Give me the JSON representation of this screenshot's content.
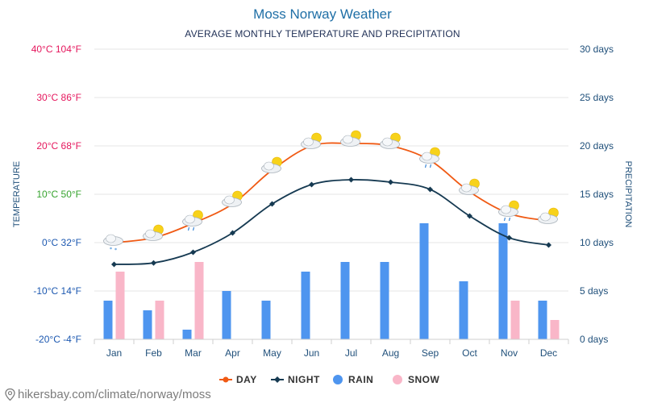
{
  "colors": {
    "title": "#1f6fa6",
    "day": "#f05a14",
    "night": "#163a52",
    "rain": "#4e95ef",
    "snow": "#f9b6c8",
    "grid": "#e6e6e6",
    "axis_label": "#1f4f7a"
  },
  "chart_data": {
    "type": "line+bar",
    "title": "Moss Norway Weather",
    "subtitle": "AVERAGE MONTHLY TEMPERATURE AND PRECIPITATION",
    "categories": [
      "Jan",
      "Feb",
      "Mar",
      "Apr",
      "May",
      "Jun",
      "Jul",
      "Aug",
      "Sep",
      "Oct",
      "Nov",
      "Dec"
    ],
    "y_left": {
      "label": "TEMPERATURE",
      "unit": "°C",
      "range": [
        -20,
        40
      ],
      "ticks": [
        {
          "value": 40,
          "label": "40°C 104°F",
          "color": "#e5175d"
        },
        {
          "value": 30,
          "label": "30°C 86°F",
          "color": "#e5175d"
        },
        {
          "value": 20,
          "label": "20°C 68°F",
          "color": "#e5175d"
        },
        {
          "value": 10,
          "label": "10°C 50°F",
          "color": "#36a32e"
        },
        {
          "value": 0,
          "label": "0°C 32°F",
          "color": "#1c58b0"
        },
        {
          "value": -10,
          "label": "-10°C 14°F",
          "color": "#1c58b0"
        },
        {
          "value": -20,
          "label": "-20°C -4°F",
          "color": "#1c58b0"
        }
      ]
    },
    "y_right": {
      "label": "PRECIPITATION",
      "unit": "days",
      "range": [
        0,
        30
      ],
      "ticks": [
        {
          "value": 30,
          "label": "30 days"
        },
        {
          "value": 25,
          "label": "25 days"
        },
        {
          "value": 20,
          "label": "20 days"
        },
        {
          "value": 15,
          "label": "15 days"
        },
        {
          "value": 10,
          "label": "10 days"
        },
        {
          "value": 5,
          "label": "5 days"
        },
        {
          "value": 0,
          "label": "0 days"
        }
      ]
    },
    "series": [
      {
        "name": "DAY",
        "kind": "line",
        "axis": "left",
        "values": [
          0,
          1,
          4,
          8,
          15,
          20,
          20.5,
          20,
          17,
          10.5,
          6,
          4.5
        ]
      },
      {
        "name": "NIGHT",
        "kind": "line",
        "axis": "left",
        "values": [
          -4.5,
          -4.2,
          -2,
          2,
          8,
          12,
          13,
          12.5,
          11,
          5.5,
          1,
          -0.5
        ]
      },
      {
        "name": "RAIN",
        "kind": "bar",
        "axis": "right",
        "values": [
          4,
          3,
          1,
          5,
          4,
          7,
          8,
          8,
          12,
          6,
          12,
          4
        ]
      },
      {
        "name": "SNOW",
        "kind": "bar",
        "axis": "right",
        "values": [
          7,
          4,
          8,
          0,
          0,
          0,
          0,
          0,
          0,
          0,
          4,
          2
        ]
      }
    ],
    "weather_icons": [
      "cloud-snow",
      "cloud-sun",
      "cloud-sun-rain",
      "cloud-sun",
      "cloud-sun",
      "cloud-sun",
      "cloud-sun",
      "cloud-sun",
      "cloud-sun-rain",
      "cloud-sun",
      "cloud-sun-rain",
      "cloud-sun"
    ],
    "legend": {
      "position": "bottom-center",
      "items": [
        {
          "label": "DAY",
          "marker": "line-dot"
        },
        {
          "label": "NIGHT",
          "marker": "line-diamond"
        },
        {
          "label": "RAIN",
          "marker": "circle"
        },
        {
          "label": "SNOW",
          "marker": "circle"
        }
      ]
    }
  },
  "footer": {
    "watermark": "hikersbay.com/climate/norway/moss"
  }
}
